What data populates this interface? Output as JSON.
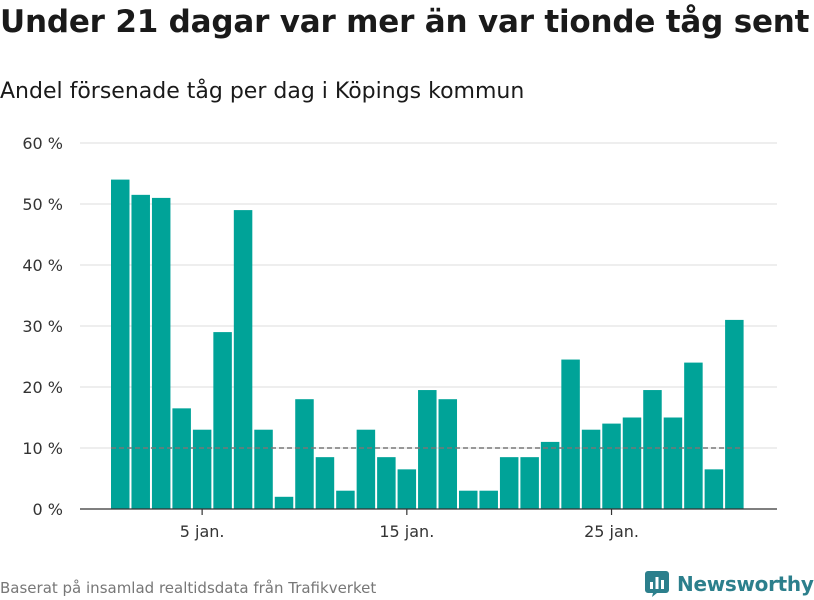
{
  "header": {
    "title": "Under 21 dagar var mer än var tionde tåg sent",
    "subtitle": "Andel försenade tåg per dag i Köpings kommun"
  },
  "footer": {
    "source": "Baserat på insamlad realtidsdata från Trafikverket",
    "brand_name": "Newsworthy"
  },
  "colors": {
    "bar": "#00a398",
    "grid": "#dddddd",
    "reference_line": "#777777",
    "axis": "#333333",
    "brand": "#2c7f8c"
  },
  "icons": {
    "brand": "bar-chart-logo-icon"
  },
  "chart_data": {
    "type": "bar",
    "x": [
      1,
      2,
      3,
      4,
      5,
      6,
      7,
      8,
      9,
      10,
      11,
      12,
      13,
      14,
      15,
      16,
      17,
      18,
      19,
      20,
      21,
      22,
      23,
      24,
      25,
      26,
      27,
      28,
      29,
      30,
      31
    ],
    "values": [
      54,
      51.5,
      51,
      16.5,
      13,
      29,
      49,
      13,
      2,
      18,
      8.5,
      3,
      13,
      8.5,
      6.5,
      19.5,
      18,
      3,
      3,
      8.5,
      8.5,
      11,
      24.5,
      13,
      14,
      15,
      19.5,
      15,
      24,
      6.5,
      31
    ],
    "x_ticks": [
      5,
      15,
      25
    ],
    "x_tick_labels": [
      "5 jan.",
      "15 jan.",
      "25 jan."
    ],
    "y_ticks": [
      0,
      10,
      20,
      30,
      40,
      50,
      60
    ],
    "y_tick_labels": [
      "0 %",
      "10 %",
      "20 %",
      "30 %",
      "40 %",
      "50 %",
      "60 %"
    ],
    "ylim": [
      0,
      60
    ],
    "reference_line": 10,
    "grid": true,
    "legend": "none",
    "title": "Under 21 dagar var mer än var tionde tåg sent",
    "subtitle": "Andel försenade tåg per dag i Köpings kommun",
    "xlabel": "",
    "ylabel": ""
  }
}
